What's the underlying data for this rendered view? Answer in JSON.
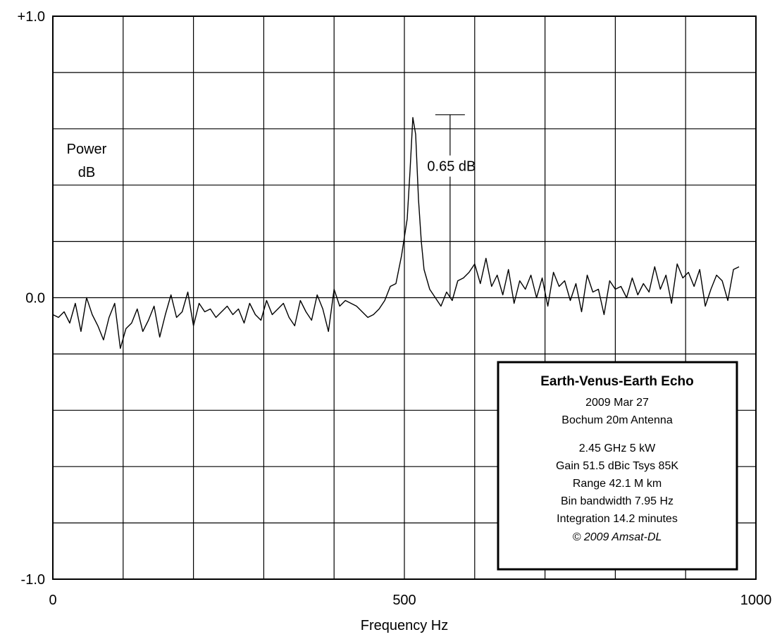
{
  "chart_data": {
    "type": "line",
    "xlabel": "Frequency  Hz",
    "ylabel": [
      "Power",
      "dB"
    ],
    "xlim": [
      0,
      1000
    ],
    "ylim": [
      -1.0,
      1.0
    ],
    "xticks": [
      {
        "value": 0,
        "label": "0"
      },
      {
        "value": 500,
        "label": "500"
      },
      {
        "value": 1000,
        "label": "1000"
      }
    ],
    "yticks": [
      {
        "value": 1.0,
        "label": "+1.0"
      },
      {
        "value": 0.0,
        "label": "0.0"
      },
      {
        "value": -1.0,
        "label": "-1.0"
      }
    ],
    "grid": {
      "x_step": 100,
      "y_step": 0.2
    },
    "series": [
      {
        "x": [
          0,
          8,
          16,
          24,
          32,
          40,
          48,
          56,
          64,
          72,
          80,
          88,
          96,
          104,
          112,
          120,
          128,
          136,
          144,
          152,
          160,
          168,
          176,
          184,
          192,
          200,
          208,
          216,
          224,
          232,
          240,
          248,
          256,
          264,
          272,
          280,
          288,
          296,
          304,
          312,
          320,
          328,
          336,
          344,
          352,
          360,
          368,
          376,
          384,
          392,
          400,
          408,
          416,
          424,
          432,
          440,
          448,
          456,
          464,
          472,
          480,
          488,
          496,
          504,
          508,
          512,
          516,
          520,
          524,
          528,
          536,
          544,
          552,
          560,
          568,
          576,
          584,
          592,
          600,
          608,
          616,
          624,
          632,
          640,
          648,
          656,
          664,
          672,
          680,
          688,
          696,
          704,
          712,
          720,
          728,
          736,
          744,
          752,
          760,
          768,
          776,
          784,
          792,
          800,
          808,
          816,
          824,
          832,
          840,
          848,
          856,
          864,
          872,
          880,
          888,
          896,
          904,
          912,
          920,
          928,
          936,
          944,
          952,
          960,
          968,
          976
        ],
        "values": [
          -0.06,
          -0.07,
          -0.05,
          -0.09,
          -0.02,
          -0.12,
          0.0,
          -0.06,
          -0.1,
          -0.15,
          -0.07,
          -0.02,
          -0.18,
          -0.11,
          -0.09,
          -0.04,
          -0.12,
          -0.08,
          -0.03,
          -0.14,
          -0.06,
          0.01,
          -0.07,
          -0.05,
          0.02,
          -0.1,
          -0.02,
          -0.05,
          -0.04,
          -0.07,
          -0.05,
          -0.03,
          -0.06,
          -0.04,
          -0.09,
          -0.02,
          -0.06,
          -0.08,
          -0.01,
          -0.06,
          -0.04,
          -0.02,
          -0.07,
          -0.1,
          -0.01,
          -0.05,
          -0.08,
          0.01,
          -0.04,
          -0.12,
          0.03,
          -0.03,
          -0.01,
          -0.02,
          -0.03,
          -0.05,
          -0.07,
          -0.06,
          -0.04,
          -0.01,
          0.04,
          0.05,
          0.15,
          0.28,
          0.45,
          0.64,
          0.58,
          0.35,
          0.2,
          0.1,
          0.03,
          0.0,
          -0.03,
          0.02,
          -0.01,
          0.06,
          0.07,
          0.09,
          0.12,
          0.05,
          0.14,
          0.04,
          0.08,
          0.01,
          0.1,
          -0.02,
          0.06,
          0.03,
          0.08,
          0.0,
          0.07,
          -0.03,
          0.09,
          0.04,
          0.06,
          -0.01,
          0.05,
          -0.05,
          0.08,
          0.02,
          0.03,
          -0.06,
          0.06,
          0.03,
          0.04,
          0.0,
          0.07,
          0.01,
          0.05,
          0.02,
          0.11,
          0.03,
          0.08,
          -0.02,
          0.12,
          0.07,
          0.09,
          0.04,
          0.1,
          -0.03,
          0.03,
          0.08,
          0.06,
          -0.01,
          0.1,
          0.11
        ]
      }
    ],
    "annotations": [
      {
        "text": "0.65 dB",
        "x": 565,
        "y_top": 0.65,
        "y_bottom": 0.0
      }
    ]
  },
  "info_box": {
    "title": "Earth-Venus-Earth Echo",
    "lines_top": [
      "2009 Mar 27",
      "Bochum 20m Antenna"
    ],
    "lines_bottom": [
      "2.45 GHz  5 kW",
      "Gain 51.5 dBic  Tsys 85K",
      "Range 42.1 M km",
      "Bin bandwidth 7.95 Hz",
      "Integration 14.2 minutes"
    ],
    "copyright": "© 2009 Amsat-DL"
  }
}
